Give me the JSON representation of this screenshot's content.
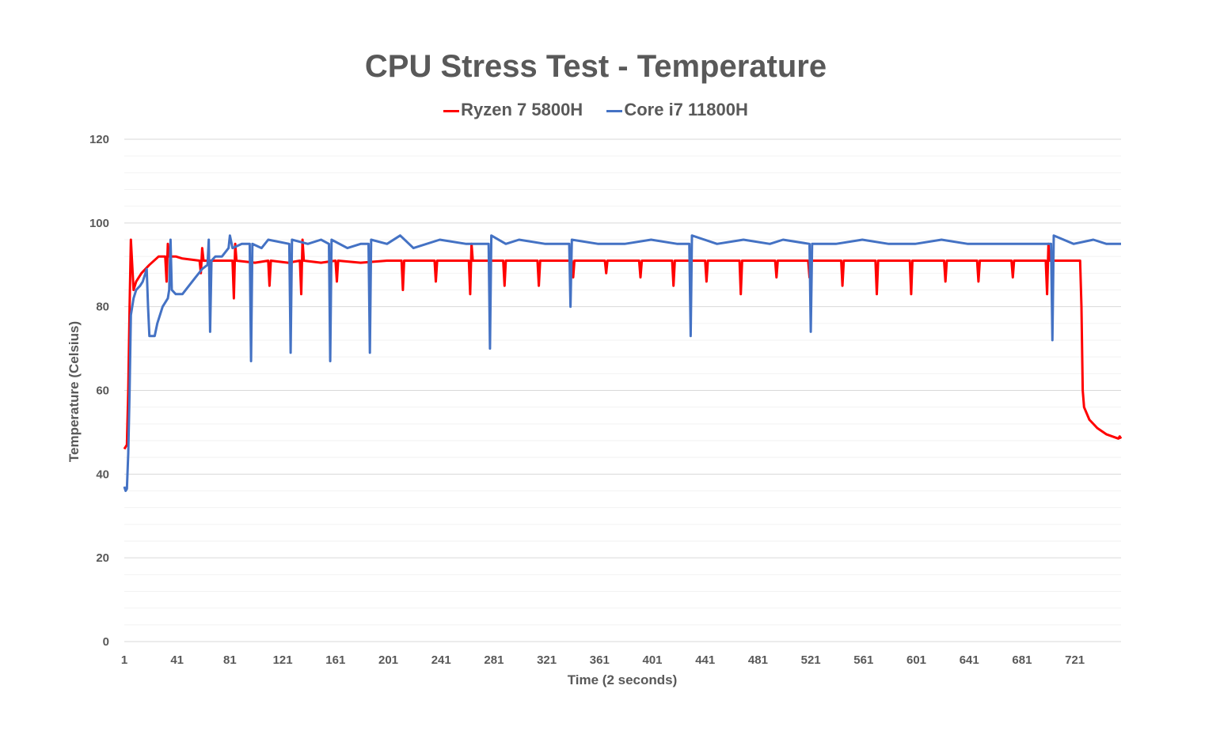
{
  "chart_data": {
    "type": "line",
    "title": "CPU Stress Test - Temperature",
    "xlabel": "Time (2 seconds)",
    "ylabel": "Temperature (Celsius)",
    "xlim": [
      1,
      756
    ],
    "ylim": [
      0,
      120
    ],
    "x_ticks": [
      1,
      41,
      81,
      121,
      161,
      201,
      241,
      281,
      321,
      361,
      401,
      441,
      481,
      521,
      561,
      601,
      641,
      681,
      721
    ],
    "y_ticks": [
      0,
      20,
      40,
      60,
      80,
      100,
      120
    ],
    "grid": true,
    "legend_position": "top",
    "series": [
      {
        "name": "Ryzen 7 5800H",
        "color": "#ff0000",
        "points": [
          [
            1,
            46
          ],
          [
            3,
            47
          ],
          [
            4,
            60
          ],
          [
            5,
            80
          ],
          [
            6,
            96
          ],
          [
            7,
            90
          ],
          [
            8,
            84
          ],
          [
            10,
            86
          ],
          [
            14,
            88
          ],
          [
            20,
            90
          ],
          [
            27,
            92
          ],
          [
            32,
            92
          ],
          [
            33,
            86
          ],
          [
            34,
            95
          ],
          [
            35,
            92
          ],
          [
            40,
            92
          ],
          [
            45,
            91.5
          ],
          [
            58,
            91
          ],
          [
            59,
            88
          ],
          [
            60,
            94
          ],
          [
            61,
            91
          ],
          [
            70,
            91
          ],
          [
            83,
            91
          ],
          [
            84,
            82
          ],
          [
            85,
            95
          ],
          [
            86,
            91
          ],
          [
            100,
            90.5
          ],
          [
            110,
            91
          ],
          [
            111,
            85
          ],
          [
            112,
            91
          ],
          [
            125,
            90.5
          ],
          [
            134,
            91
          ],
          [
            135,
            83
          ],
          [
            136,
            96
          ],
          [
            137,
            91
          ],
          [
            150,
            90.5
          ],
          [
            161,
            91
          ],
          [
            162,
            86
          ],
          [
            163,
            91
          ],
          [
            180,
            90.5
          ],
          [
            200,
            91
          ],
          [
            211,
            91
          ],
          [
            212,
            84
          ],
          [
            213,
            91
          ],
          [
            236,
            91
          ],
          [
            237,
            86
          ],
          [
            238,
            91
          ],
          [
            262,
            91
          ],
          [
            263,
            83
          ],
          [
            264,
            95
          ],
          [
            265,
            91
          ],
          [
            288,
            91
          ],
          [
            289,
            85
          ],
          [
            290,
            91
          ],
          [
            314,
            91
          ],
          [
            315,
            85
          ],
          [
            316,
            91
          ],
          [
            340,
            91
          ],
          [
            341,
            87
          ],
          [
            342,
            91
          ],
          [
            365,
            91
          ],
          [
            366,
            88
          ],
          [
            367,
            91
          ],
          [
            391,
            91
          ],
          [
            392,
            87
          ],
          [
            393,
            91
          ],
          [
            416,
            91
          ],
          [
            417,
            85
          ],
          [
            418,
            91
          ],
          [
            441,
            91
          ],
          [
            442,
            86
          ],
          [
            443,
            91
          ],
          [
            467,
            91
          ],
          [
            468,
            83
          ],
          [
            469,
            91
          ],
          [
            494,
            91
          ],
          [
            495,
            87
          ],
          [
            496,
            91
          ],
          [
            519,
            91
          ],
          [
            520,
            87
          ],
          [
            521,
            91
          ],
          [
            544,
            91
          ],
          [
            545,
            85
          ],
          [
            546,
            91
          ],
          [
            570,
            91
          ],
          [
            571,
            83
          ],
          [
            572,
            91
          ],
          [
            596,
            91
          ],
          [
            597,
            83
          ],
          [
            598,
            91
          ],
          [
            622,
            91
          ],
          [
            623,
            86
          ],
          [
            624,
            91
          ],
          [
            647,
            91
          ],
          [
            648,
            86
          ],
          [
            649,
            91
          ],
          [
            673,
            91
          ],
          [
            674,
            87
          ],
          [
            675,
            91
          ],
          [
            699,
            91
          ],
          [
            700,
            83
          ],
          [
            701,
            95
          ],
          [
            702,
            91
          ],
          [
            725,
            91
          ],
          [
            726,
            80
          ],
          [
            727,
            60
          ],
          [
            728,
            56
          ],
          [
            732,
            53
          ],
          [
            738,
            51
          ],
          [
            745,
            49.5
          ],
          [
            754,
            48.5
          ],
          [
            755,
            49
          ],
          [
            756,
            48.5
          ]
        ]
      },
      {
        "name": "Core i7 11800H",
        "color": "#4472c4",
        "points": [
          [
            1,
            37
          ],
          [
            2,
            36
          ],
          [
            3,
            36.5
          ],
          [
            4,
            45
          ],
          [
            5,
            60
          ],
          [
            6,
            78
          ],
          [
            8,
            82
          ],
          [
            10,
            84
          ],
          [
            13,
            85
          ],
          [
            15,
            86
          ],
          [
            17,
            88
          ],
          [
            18,
            89
          ],
          [
            19,
            80
          ],
          [
            20,
            73
          ],
          [
            24,
            73
          ],
          [
            26,
            76
          ],
          [
            30,
            80
          ],
          [
            34,
            82
          ],
          [
            35,
            84
          ],
          [
            36,
            96
          ],
          [
            37,
            84
          ],
          [
            40,
            83
          ],
          [
            45,
            83
          ],
          [
            50,
            85
          ],
          [
            55,
            87
          ],
          [
            60,
            89
          ],
          [
            64,
            90
          ],
          [
            65,
            96
          ],
          [
            66,
            74
          ],
          [
            67,
            91
          ],
          [
            70,
            92
          ],
          [
            75,
            92
          ],
          [
            80,
            94
          ],
          [
            81,
            97
          ],
          [
            83,
            94
          ],
          [
            90,
            95
          ],
          [
            96,
            95
          ],
          [
            97,
            67
          ],
          [
            98,
            95
          ],
          [
            105,
            94
          ],
          [
            110,
            96
          ],
          [
            126,
            95
          ],
          [
            127,
            69
          ],
          [
            128,
            96
          ],
          [
            140,
            95
          ],
          [
            150,
            96
          ],
          [
            156,
            95
          ],
          [
            157,
            67
          ],
          [
            158,
            96
          ],
          [
            170,
            94
          ],
          [
            180,
            95
          ],
          [
            186,
            95
          ],
          [
            187,
            69
          ],
          [
            188,
            96
          ],
          [
            200,
            95
          ],
          [
            210,
            97
          ],
          [
            220,
            94
          ],
          [
            240,
            96
          ],
          [
            260,
            95
          ],
          [
            277,
            95
          ],
          [
            278,
            70
          ],
          [
            279,
            97
          ],
          [
            290,
            95
          ],
          [
            300,
            96
          ],
          [
            320,
            95
          ],
          [
            338,
            95
          ],
          [
            339,
            80
          ],
          [
            340,
            96
          ],
          [
            360,
            95
          ],
          [
            380,
            95
          ],
          [
            400,
            96
          ],
          [
            420,
            95
          ],
          [
            429,
            95
          ],
          [
            430,
            73
          ],
          [
            431,
            97
          ],
          [
            450,
            95
          ],
          [
            470,
            96
          ],
          [
            490,
            95
          ],
          [
            500,
            96
          ],
          [
            520,
            95
          ],
          [
            521,
            74
          ],
          [
            522,
            95
          ],
          [
            540,
            95
          ],
          [
            560,
            96
          ],
          [
            580,
            95
          ],
          [
            600,
            95
          ],
          [
            620,
            96
          ],
          [
            640,
            95
          ],
          [
            660,
            95
          ],
          [
            680,
            95
          ],
          [
            703,
            95
          ],
          [
            704,
            72
          ],
          [
            705,
            97
          ],
          [
            720,
            95
          ],
          [
            735,
            96
          ],
          [
            745,
            95
          ],
          [
            756,
            95
          ]
        ]
      }
    ]
  }
}
